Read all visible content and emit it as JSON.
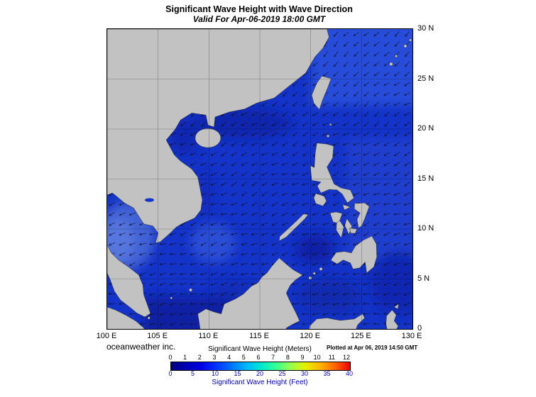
{
  "header": {
    "title": "Significant Wave Height with Wave Direction",
    "subtitle": "Valid For Apr-06-2019 18:00 GMT"
  },
  "map": {
    "lat_labels": [
      "30 N",
      "25 N",
      "20 N",
      "15 N",
      "10 N",
      "5 N",
      "0"
    ],
    "lon_labels": [
      "100 E",
      "105 E",
      "110 E",
      "115 E",
      "120 E",
      "125 E",
      "130 E"
    ],
    "colors": {
      "ocean_base": "#1433C8",
      "land": "#C2C2C2",
      "coastline": "#2E2E2E",
      "arrows": "#101024"
    }
  },
  "footer": {
    "credit": "oceanweather inc.",
    "plotted": "Plotted at Apr 06, 2019 14:50 GMT"
  },
  "legend": {
    "meters_title": "Significant Wave Height (Meters)",
    "feet_title": "Significant Wave Height (Feet)",
    "meters_ticks": [
      0,
      1,
      2,
      3,
      4,
      5,
      6,
      7,
      8,
      9,
      10,
      11,
      12
    ],
    "feet_ticks": [
      0,
      5,
      10,
      15,
      20,
      25,
      30,
      35,
      40
    ],
    "meters_max": 12.192,
    "feet_max": 40,
    "colorbar": [
      "#00007F",
      "#0000B4",
      "#0000E6",
      "#0032FF",
      "#0070FF",
      "#00B4FF",
      "#00E6D2",
      "#32FF96",
      "#96FF50",
      "#E6F000",
      "#FFB400",
      "#FF6400",
      "#F00000"
    ]
  }
}
